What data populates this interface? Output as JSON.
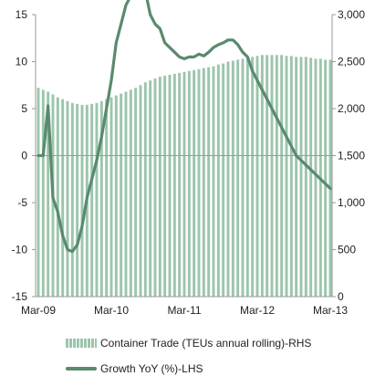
{
  "chart_data": {
    "type": "bar-line",
    "x_tick_labels": [
      "Mar-09",
      "Mar-10",
      "Mar-11",
      "Mar-12",
      "Mar-13"
    ],
    "left_axis": {
      "ticks": [
        "15",
        "10",
        "5",
        "0",
        "-5",
        "-10",
        "-15"
      ],
      "ylim": [
        -15,
        15
      ]
    },
    "right_axis": {
      "ticks": [
        "3,000",
        "2,500",
        "2,000",
        "1,500",
        "1,000",
        "500",
        "0"
      ],
      "ylim": [
        0,
        3000
      ]
    },
    "series": [
      {
        "name": "Container Trade (TEUs annual rolling)-RHS",
        "type": "bar",
        "axis": "right",
        "color": "#9cc5ad",
        "values": [
          2220,
          2200,
          2180,
          2150,
          2120,
          2100,
          2080,
          2060,
          2050,
          2040,
          2040,
          2050,
          2060,
          2080,
          2100,
          2120,
          2140,
          2160,
          2180,
          2200,
          2220,
          2250,
          2280,
          2300,
          2320,
          2340,
          2350,
          2360,
          2370,
          2380,
          2390,
          2400,
          2410,
          2420,
          2430,
          2440,
          2450,
          2470,
          2480,
          2500,
          2510,
          2520,
          2530,
          2540,
          2550,
          2560,
          2570,
          2570,
          2570,
          2570,
          2570,
          2560,
          2560,
          2550,
          2550,
          2550,
          2540,
          2530,
          2530,
          2520,
          2520
        ]
      },
      {
        "name": "Growth YoY (%)-LHS",
        "type": "line",
        "axis": "left",
        "color": "#5a8a6e",
        "values": [
          0,
          0,
          5.3,
          -4.5,
          -6.0,
          -8.5,
          -10.0,
          -10.2,
          -9.5,
          -7.5,
          -4.5,
          -2.5,
          -0.5,
          2.0,
          5.0,
          8.0,
          12.0,
          14.0,
          16.0,
          17.0,
          17.5,
          17.8,
          17.5,
          15.0,
          14.0,
          13.5,
          12.0,
          11.5,
          11.0,
          10.5,
          10.3,
          10.5,
          10.5,
          10.8,
          10.6,
          11.0,
          11.5,
          11.8,
          12.0,
          12.3,
          12.3,
          11.8,
          11.0,
          10.5,
          9.0,
          8.0,
          7.0,
          6.0,
          5.0,
          4.0,
          3.0,
          2.0,
          1.0,
          0.0,
          -0.5,
          -1.0,
          -1.5,
          -2.0,
          -2.5,
          -3.0,
          -3.5
        ]
      }
    ]
  },
  "legend": {
    "bar_label": "Container Trade (TEUs annual rolling)-RHS",
    "line_label": "Growth YoY (%)-LHS"
  }
}
